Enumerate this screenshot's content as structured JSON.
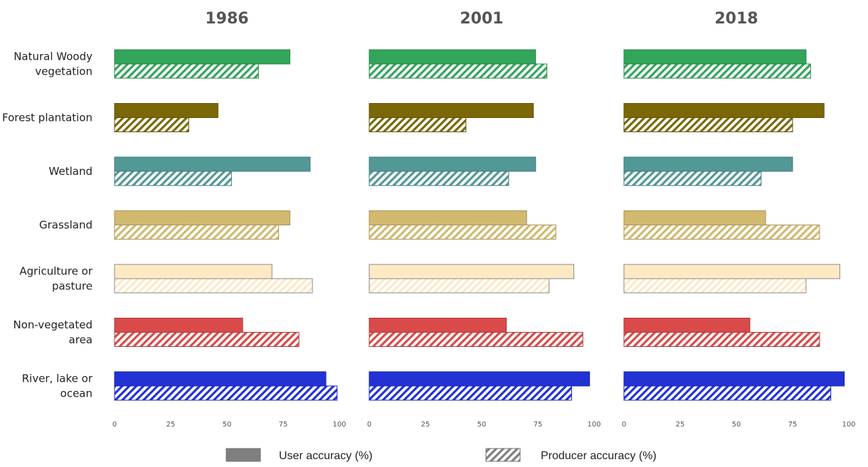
{
  "chart_data": {
    "type": "bar",
    "orientation": "horizontal",
    "panels": [
      {
        "title": "1986",
        "series": [
          {
            "name": "User accuracy (%)",
            "values": [
              78,
              46,
              87,
              78,
              70,
              57,
              94
            ]
          },
          {
            "name": "Producer accuracy (%)",
            "values": [
              64,
              33,
              52,
              73,
              88,
              82,
              99
            ]
          }
        ]
      },
      {
        "title": "2001",
        "series": [
          {
            "name": "User accuracy (%)",
            "values": [
              74,
              73,
              74,
              70,
              91,
              61,
              98
            ]
          },
          {
            "name": "Producer accuracy (%)",
            "values": [
              79,
              43,
              62,
              83,
              80,
              95,
              90
            ]
          }
        ]
      },
      {
        "title": "2018",
        "series": [
          {
            "name": "User accuracy (%)",
            "values": [
              81,
              89,
              75,
              63,
              96,
              56,
              98
            ]
          },
          {
            "name": "Producer accuracy (%)",
            "values": [
              83,
              75,
              61,
              87,
              81,
              87,
              92
            ]
          }
        ]
      }
    ],
    "categories": [
      [
        "Natural Woody",
        "vegetation"
      ],
      [
        "Forest plantation"
      ],
      [
        "Wetland"
      ],
      [
        "Grassland"
      ],
      [
        "Agriculture or",
        "pasture"
      ],
      [
        "Non-vegetated",
        "area"
      ],
      [
        "River, lake or",
        "ocean"
      ]
    ],
    "category_colors": [
      "#33a55b",
      "#7a6806",
      "#529896",
      "#d2b970",
      "#fde9c4",
      "#d94a4a",
      "#2232d4"
    ],
    "xlim": [
      0,
      100
    ],
    "xticks": [
      "0",
      "25",
      "50",
      "75",
      "100"
    ],
    "legend": {
      "placement": "bottom",
      "entries": [
        {
          "label": "User accuracy (%)",
          "style": "solid",
          "color": "#7f7f7f"
        },
        {
          "label": "Producer accuracy (%)",
          "style": "hatched",
          "color": "#7f7f7f"
        }
      ]
    },
    "xlabel": "",
    "ylabel": ""
  }
}
